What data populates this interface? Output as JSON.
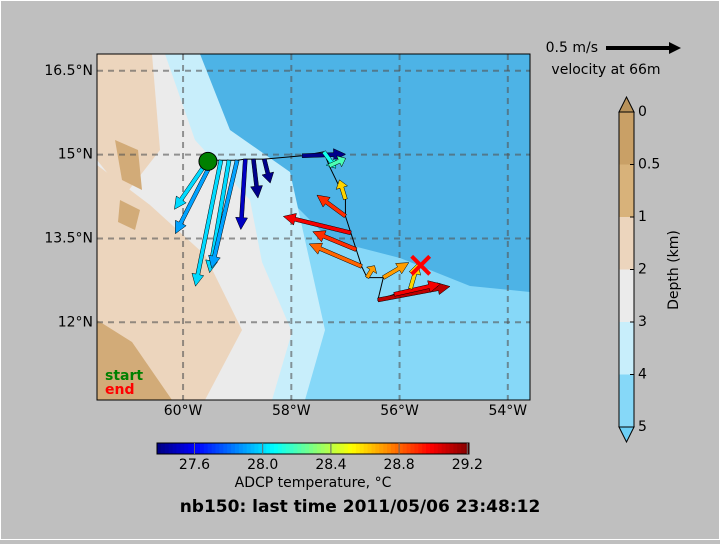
{
  "title": "nb150: last time 2011/05/06 23:48:12",
  "map": {
    "lonlim": [
      -61.59,
      -53.59
    ],
    "latlim": [
      10.61,
      16.8
    ],
    "lon_ticks": [
      {
        "value": -60,
        "label": "60°W"
      },
      {
        "value": -58,
        "label": "58°W"
      },
      {
        "value": -56,
        "label": "56°W"
      },
      {
        "value": -54,
        "label": "54°W"
      }
    ],
    "lat_ticks": [
      {
        "value": 16.5,
        "label": "16.5°N"
      },
      {
        "value": 15,
        "label": "15°N"
      },
      {
        "value": 13.5,
        "label": "13.5°N"
      },
      {
        "value": 12,
        "label": "12°N"
      }
    ],
    "grid": true
  },
  "start": {
    "label": "start",
    "lon": -59.54,
    "lat": 14.88,
    "color": "#008000"
  },
  "end": {
    "label": "end",
    "lon": -55.61,
    "lat": 13.02,
    "color": "#ff0000"
  },
  "vectors": {
    "lon": [
      -59.55,
      -59.45,
      -59.3,
      -59.15,
      -59.0,
      -58.85,
      -58.7,
      -58.5,
      -57.8,
      -57.4,
      -57.3,
      -57.0,
      -57.0,
      -56.9,
      -56.8,
      -56.7,
      -56.6,
      -56.3,
      -56.4,
      -56.1,
      -55.8
    ],
    "lat": [
      14.88,
      14.9,
      14.9,
      14.9,
      14.9,
      14.92,
      14.92,
      14.92,
      14.98,
      15.05,
      14.8,
      14.2,
      13.9,
      13.6,
      13.3,
      13.0,
      12.8,
      12.8,
      12.4,
      12.5,
      12.6
    ],
    "u": [
      -0.22,
      -0.25,
      -0.17,
      -0.13,
      -0.17,
      -0.03,
      0.03,
      0.04,
      0.29,
      0.08,
      0.11,
      -0.04,
      -0.19,
      -0.45,
      -0.29,
      -0.35,
      0.05,
      0.17,
      0.48,
      0.31,
      0.05
    ],
    "v": [
      -0.32,
      -0.49,
      -0.84,
      -0.75,
      -0.72,
      -0.47,
      -0.26,
      -0.16,
      0.01,
      -0.11,
      0.05,
      0.13,
      0.14,
      0.11,
      0.12,
      0.15,
      0.08,
      0.1,
      0.09,
      0.07,
      0.17
    ],
    "temperature": [
      28.0,
      27.9,
      28.0,
      28.0,
      27.9,
      27.5,
      27.4,
      27.4,
      27.4,
      28.1,
      28.2,
      28.6,
      28.9,
      29.0,
      28.9,
      28.8,
      28.7,
      28.7,
      29.1,
      29.0,
      28.6
    ]
  },
  "reference": {
    "speed": 0.5,
    "label": "0.5 m/s",
    "caption": "velocity at 66m"
  },
  "temperature_colorbar": {
    "label": "ADCP temperature, °C",
    "lim": [
      27.38,
      29.21
    ],
    "ticks": [
      27.6,
      {
        "value": 28,
        "label": "28.0"
      },
      28.4,
      28.8,
      29.2
    ]
  },
  "depth_colorbar": {
    "label": "Depth (km)",
    "ticks": [
      0,
      0.5,
      1,
      2,
      3,
      4,
      5
    ],
    "colors": [
      "#c9a066",
      "#d8b27a",
      "#ecd5bd",
      "#ebebeb",
      "#c8eefb",
      "#86d8f8"
    ]
  }
}
